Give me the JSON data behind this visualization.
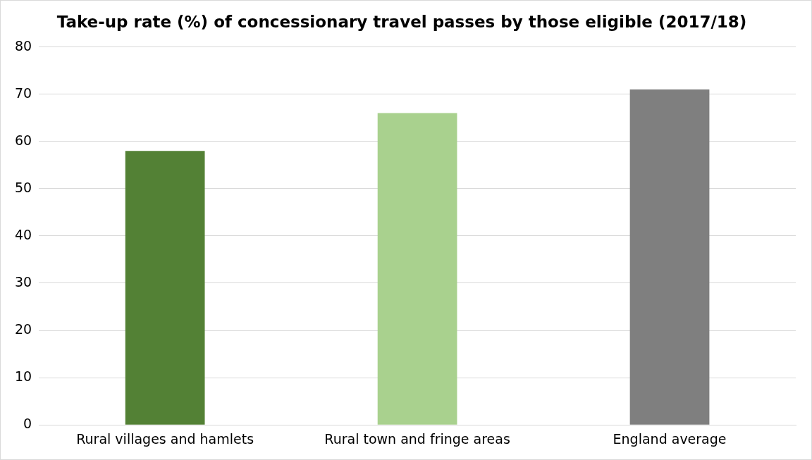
{
  "chart_data": {
    "type": "bar",
    "title": "Take-up rate (%) of concessionary travel passes by those eligible (2017/18)",
    "categories": [
      "Rural villages and hamlets",
      "Rural town and fringe areas",
      "England average"
    ],
    "values": [
      58,
      66,
      71
    ],
    "colors": [
      "#538135",
      "#a9d18e",
      "#7f7f7f"
    ],
    "ylim": [
      0,
      80
    ],
    "yticks": [
      0,
      10,
      20,
      30,
      40,
      50,
      60,
      70,
      80
    ],
    "grid": "y",
    "legend": false
  }
}
